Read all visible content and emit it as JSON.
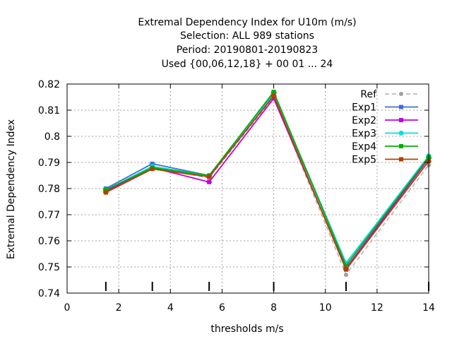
{
  "chart_data": {
    "type": "line",
    "title_lines": [
      "Extremal Dependency Index  for U10m (m/s)",
      "Selection: ALL    989 stations",
      "Period: 20190801-20190823",
      "Used {00,06,12,18} + 00 01 ... 24"
    ],
    "xlabel": "thresholds m/s",
    "ylabel": "Extremal Dependency Index",
    "xlim": [
      0,
      14
    ],
    "ylim": [
      0.74,
      0.82
    ],
    "xticks": [
      0,
      2,
      4,
      6,
      8,
      10,
      12,
      14
    ],
    "yticks": [
      0.74,
      0.75,
      0.76,
      0.77,
      0.78,
      0.79,
      0.8,
      0.81,
      0.82
    ],
    "x": [
      1.5,
      3.3,
      5.5,
      8.0,
      10.8,
      14.0
    ],
    "grid": true,
    "legend_position": "top-right",
    "series": [
      {
        "name": "Ref",
        "color": "#a0a0a0",
        "dashed": true,
        "values": [
          0.779,
          0.788,
          0.784,
          0.815,
          0.747,
          0.789
        ]
      },
      {
        "name": "Exp1",
        "color": "#3a6fd8",
        "dashed": false,
        "values": [
          0.78,
          0.7895,
          0.785,
          0.8165,
          0.7515,
          0.792
        ]
      },
      {
        "name": "Exp2",
        "color": "#c000e0",
        "dashed": false,
        "values": [
          0.779,
          0.788,
          0.7825,
          0.8145,
          0.7495,
          0.7915
        ]
      },
      {
        "name": "Exp3",
        "color": "#00e0e0",
        "dashed": false,
        "values": [
          0.7795,
          0.7885,
          0.785,
          0.816,
          0.7515,
          0.7925
        ]
      },
      {
        "name": "Exp4",
        "color": "#00b000",
        "dashed": false,
        "values": [
          0.7795,
          0.788,
          0.785,
          0.817,
          0.7505,
          0.792
        ]
      },
      {
        "name": "Exp5",
        "color": "#b04000",
        "dashed": false,
        "values": [
          0.7785,
          0.7875,
          0.7845,
          0.8155,
          0.749,
          0.7905
        ]
      }
    ]
  }
}
